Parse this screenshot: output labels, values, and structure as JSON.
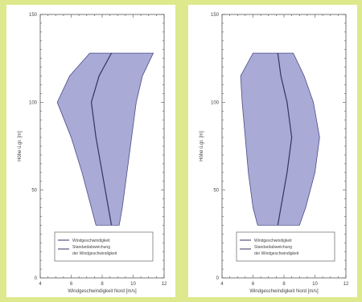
{
  "chart_data": [
    {
      "type": "area",
      "title": "",
      "xlabel": "Windgeschwindigkeit Nord [m/s]",
      "ylabel": "Höhe ü.gr. [m]",
      "xlim": [
        4,
        12
      ],
      "ylim": [
        0,
        150
      ],
      "x_ticks": [
        "4",
        "6",
        "8",
        "10",
        "12"
      ],
      "y_ticks": [
        "0",
        "50",
        "100",
        "150"
      ],
      "grid": false,
      "legend_position": "bottom-right",
      "legend": [
        "Windgeschwindigkeit",
        "Standardabweichung",
        "der Windgeschwindigkeit"
      ],
      "series": [
        {
          "name": "Windgeschwindigkeit",
          "y": [
            30,
            40,
            60,
            80,
            100,
            115,
            128
          ],
          "x": [
            8.6,
            8.4,
            8.0,
            7.6,
            7.3,
            7.8,
            8.6
          ]
        },
        {
          "name": "Standardabweichung",
          "y": [
            30,
            40,
            60,
            80,
            100,
            115,
            128
          ],
          "lower": [
            7.6,
            7.3,
            6.7,
            6.0,
            5.1,
            5.9,
            7.2
          ],
          "upper": [
            9.1,
            9.3,
            9.6,
            9.9,
            10.2,
            10.6,
            11.3
          ]
        }
      ]
    },
    {
      "type": "area",
      "title": "",
      "xlabel": "Windgeschwindigkeit Nord [m/s]",
      "ylabel": "Höhe ü.gr. [m]",
      "xlim": [
        4,
        12
      ],
      "ylim": [
        0,
        150
      ],
      "x_ticks": [
        "4",
        "6",
        "8",
        "10",
        "12"
      ],
      "y_ticks": [
        "0",
        "50",
        "100",
        "150"
      ],
      "grid": false,
      "legend_position": "bottom-right",
      "legend": [
        "Windgeschwindigkeit",
        "Standardabweichung",
        "der Windgeschwindigkeit"
      ],
      "series": [
        {
          "name": "Windgeschwindigkeit",
          "y": [
            30,
            40,
            60,
            80,
            100,
            115,
            128
          ],
          "x": [
            7.6,
            7.8,
            8.2,
            8.5,
            8.2,
            7.8,
            7.6
          ]
        },
        {
          "name": "Standardabweichung",
          "y": [
            30,
            40,
            60,
            80,
            100,
            115,
            128
          ],
          "lower": [
            6.3,
            6.0,
            5.7,
            5.5,
            5.3,
            5.2,
            6.0
          ],
          "upper": [
            9.0,
            9.4,
            10.0,
            10.3,
            9.9,
            9.3,
            8.6
          ]
        }
      ]
    }
  ]
}
